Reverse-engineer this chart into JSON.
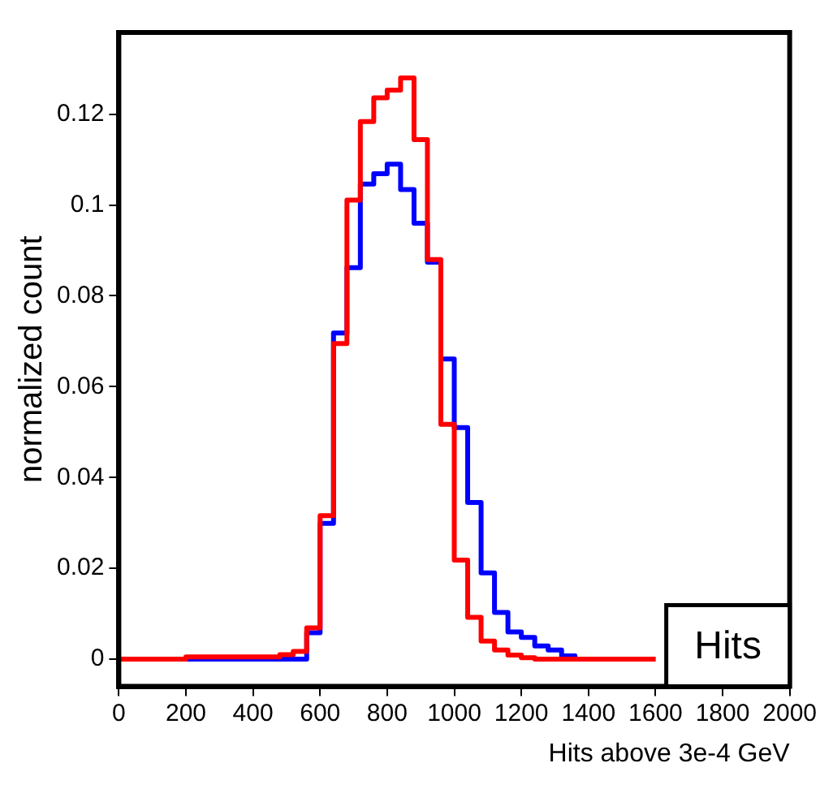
{
  "chart_data": {
    "type": "histogram",
    "title": "Hits",
    "xlabel": "Hits above 3e-4 GeV",
    "ylabel": "normalized count",
    "bins": [
      0,
      40,
      80,
      120,
      160,
      200,
      240,
      280,
      320,
      360,
      400,
      440,
      480,
      520,
      560,
      600,
      640,
      680,
      720,
      760,
      800,
      840,
      880,
      920,
      960,
      1000,
      1040,
      1080,
      1120,
      1160,
      1200,
      1240,
      1280,
      1320,
      1360,
      1400,
      1440,
      1480,
      1520,
      1560,
      1600
    ],
    "series": [
      {
        "color": "#ff0000",
        "values": [
          0,
          0,
          0,
          0,
          0,
          0.0005,
          0.0005,
          0.0005,
          0.0005,
          0.0005,
          0.0005,
          0.0005,
          0.001,
          0.0017,
          0.0069,
          0.0316,
          0.0695,
          0.1011,
          0.1184,
          0.1236,
          0.1253,
          0.128,
          0.1144,
          0.088,
          0.0517,
          0.0218,
          0.0092,
          0.004,
          0.002,
          0.0009,
          0.0003,
          0,
          0,
          0,
          0,
          0,
          0,
          0,
          0,
          0
        ]
      },
      {
        "color": "#0000ff",
        "values": [
          0,
          0,
          0,
          0,
          0,
          0,
          0,
          0,
          0,
          0,
          0,
          0,
          0,
          0,
          0.0058,
          0.0299,
          0.0718,
          0.0862,
          0.1046,
          0.1069,
          0.109,
          0.1034,
          0.096,
          0.0874,
          0.0661,
          0.051,
          0.0345,
          0.019,
          0.0103,
          0.006,
          0.0048,
          0.0029,
          0.002,
          0.0007,
          0,
          0,
          0,
          0,
          0,
          0
        ]
      }
    ],
    "xlim": [
      0,
      2000
    ],
    "xticks": [
      0,
      200,
      400,
      600,
      800,
      1000,
      1200,
      1400,
      1600,
      1800,
      2000
    ],
    "ylim": [
      -0.006,
      0.138
    ],
    "yticks": [
      0,
      0.02,
      0.04,
      0.06,
      0.08,
      0.1,
      0.12
    ],
    "grid": false,
    "legend": false
  }
}
